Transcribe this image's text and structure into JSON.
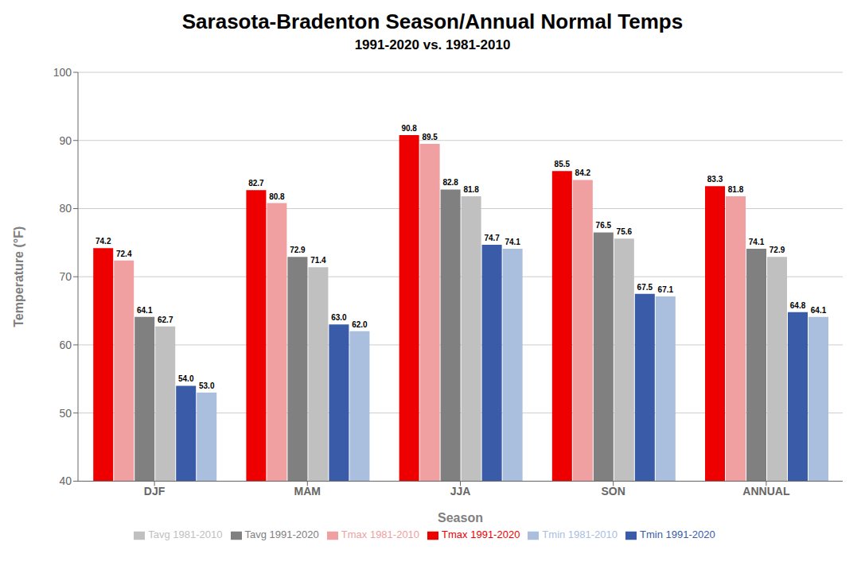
{
  "chart_data": {
    "type": "bar",
    "title": "Sarasota-Bradenton Season/Annual Normal Temps",
    "subtitle": "1991-2020 vs. 1981-2010",
    "xlabel": "Season",
    "ylabel": "Temperature (°F)",
    "categories": [
      "DJF",
      "MAM",
      "JJA",
      "SON",
      "ANNUAL"
    ],
    "series": [
      {
        "name": "Tmax 1991-2020",
        "color": "#EE0000",
        "values": [
          74.2,
          82.7,
          90.8,
          85.5,
          83.3
        ],
        "value_labels": [
          "74.2",
          "82.7",
          "90.8",
          "85.5",
          "83.3"
        ]
      },
      {
        "name": "Tmax 1981-2010",
        "color": "#F0A0A0",
        "values": [
          72.4,
          80.8,
          89.5,
          84.2,
          81.8
        ],
        "value_labels": [
          "72.4",
          "80.8",
          "89.5",
          "84.2",
          "81.8"
        ]
      },
      {
        "name": "Tavg 1991-2020",
        "color": "#808080",
        "values": [
          64.1,
          72.9,
          82.8,
          76.5,
          74.1
        ],
        "value_labels": [
          "64.1",
          "72.9",
          "82.8",
          "76.5",
          "74.1"
        ]
      },
      {
        "name": "Tavg 1981-2010",
        "color": "#C0C0C0",
        "values": [
          62.7,
          71.4,
          81.8,
          75.6,
          72.9
        ],
        "value_labels": [
          "62.7",
          "71.4",
          "81.8",
          "75.6",
          "72.9"
        ]
      },
      {
        "name": "Tmin 1991-2020",
        "color": "#3A5CA8",
        "values": [
          54.0,
          63.0,
          74.7,
          67.5,
          64.8
        ],
        "value_labels": [
          "54.0",
          "63.0",
          "74.7",
          "67.5",
          "64.8"
        ]
      },
      {
        "name": "Tmin 1981-2010",
        "color": "#AABEDD",
        "values": [
          53.0,
          62.0,
          74.1,
          67.1,
          64.1
        ],
        "value_labels": [
          "53.0",
          "62.0",
          "74.1",
          "67.1",
          "64.1"
        ]
      }
    ],
    "ylim": [
      40,
      100
    ],
    "yticks": [
      40,
      50,
      60,
      70,
      80,
      90,
      100
    ],
    "grid": true,
    "legend": "bottom",
    "data_labels": true
  }
}
